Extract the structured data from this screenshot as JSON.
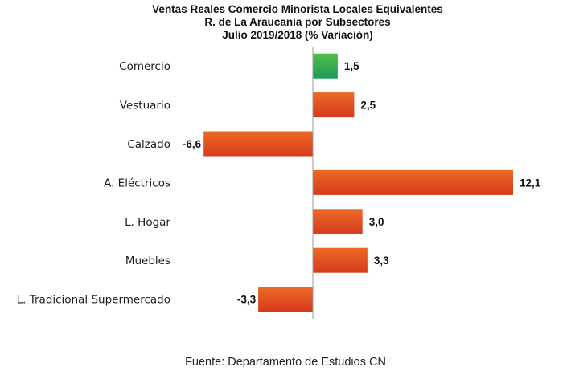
{
  "chart_data": {
    "type": "bar",
    "orientation": "horizontal",
    "title": [
      "Ventas Reales Comercio Minorista Locales Equivalentes",
      "R. de La Araucanía por Subsectores",
      "Julio  2019/2018 (% Variación)"
    ],
    "categories": [
      "Comercio",
      "Vestuario",
      "Calzado",
      "A. Eléctricos",
      "L. Hogar",
      "Muebles",
      "L. Tradicional Supermercado"
    ],
    "values": [
      1.5,
      2.5,
      -6.6,
      12.1,
      3.0,
      3.3,
      -3.3
    ],
    "value_labels": [
      "1,5",
      "2,5",
      "-6,6",
      "12,1",
      "3,0",
      "3,3",
      "-3,3"
    ],
    "highlight_index": 0,
    "colors": {
      "highlight_top": "#4fbf48",
      "highlight_bottom": "#1f9a5a",
      "bar_top": "#ec6a25",
      "bar_bottom": "#d73a1e",
      "axis": "#9a9a9a"
    },
    "xlim": [
      -6.6,
      12.1
    ],
    "source": "Fuente: Departamento de Estudios CN"
  }
}
